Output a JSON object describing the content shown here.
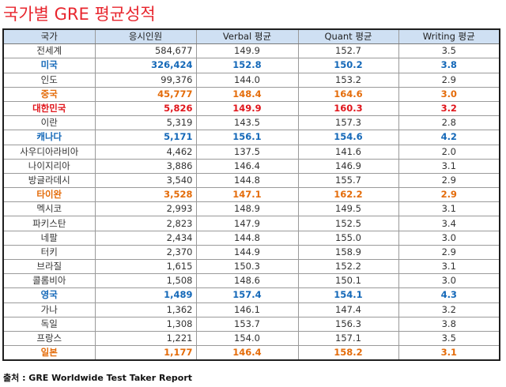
{
  "title": "국가별 GRE 평균성적",
  "headers": [
    "국가",
    "응시인원",
    "Verbal 평균",
    "Quant 평균",
    "Writing 평균"
  ],
  "rows": [
    {
      "country": "전세계",
      "takers": "584,677",
      "verbal": "149.9",
      "quant": "152.7",
      "writing": "3.5",
      "style": ""
    },
    {
      "country": "미국",
      "takers": "326,424",
      "verbal": "152.8",
      "quant": "150.2",
      "writing": "3.8",
      "style": "blue"
    },
    {
      "country": "인도",
      "takers": "99,376",
      "verbal": "144.0",
      "quant": "153.2",
      "writing": "2.9",
      "style": ""
    },
    {
      "country": "중국",
      "takers": "45,777",
      "verbal": "148.4",
      "quant": "164.6",
      "writing": "3.0",
      "style": "orange"
    },
    {
      "country": "대한민국",
      "takers": "5,826",
      "verbal": "149.9",
      "quant": "160.3",
      "writing": "3.2",
      "style": "red"
    },
    {
      "country": "이란",
      "takers": "5,319",
      "verbal": "143.5",
      "quant": "157.3",
      "writing": "2.8",
      "style": ""
    },
    {
      "country": "캐나다",
      "takers": "5,171",
      "verbal": "156.1",
      "quant": "154.6",
      "writing": "4.2",
      "style": "blue"
    },
    {
      "country": "사우디아라비아",
      "takers": "4,462",
      "verbal": "137.5",
      "quant": "141.6",
      "writing": "2.0",
      "style": ""
    },
    {
      "country": "나이지리아",
      "takers": "3,886",
      "verbal": "146.4",
      "quant": "146.9",
      "writing": "3.1",
      "style": ""
    },
    {
      "country": "방글라데시",
      "takers": "3,540",
      "verbal": "144.8",
      "quant": "155.7",
      "writing": "2.9",
      "style": ""
    },
    {
      "country": "타이완",
      "takers": "3,528",
      "verbal": "147.1",
      "quant": "162.2",
      "writing": "2.9",
      "style": "orange"
    },
    {
      "country": "멕시코",
      "takers": "2,993",
      "verbal": "148.9",
      "quant": "149.5",
      "writing": "3.1",
      "style": ""
    },
    {
      "country": "파키스탄",
      "takers": "2,823",
      "verbal": "147.9",
      "quant": "152.5",
      "writing": "3.4",
      "style": ""
    },
    {
      "country": "네팔",
      "takers": "2,434",
      "verbal": "144.8",
      "quant": "155.0",
      "writing": "3.0",
      "style": ""
    },
    {
      "country": "터키",
      "takers": "2,370",
      "verbal": "144.9",
      "quant": "158.9",
      "writing": "2.9",
      "style": ""
    },
    {
      "country": "브라질",
      "takers": "1,615",
      "verbal": "150.3",
      "quant": "152.2",
      "writing": "3.1",
      "style": ""
    },
    {
      "country": "콜롬비아",
      "takers": "1,508",
      "verbal": "148.6",
      "quant": "150.1",
      "writing": "3.0",
      "style": ""
    },
    {
      "country": "영국",
      "takers": "1,489",
      "verbal": "157.4",
      "quant": "154.1",
      "writing": "4.3",
      "style": "blue"
    },
    {
      "country": "가나",
      "takers": "1,362",
      "verbal": "146.1",
      "quant": "147.4",
      "writing": "3.2",
      "style": ""
    },
    {
      "country": "독일",
      "takers": "1,308",
      "verbal": "153.7",
      "quant": "156.3",
      "writing": "3.8",
      "style": ""
    },
    {
      "country": "프랑스",
      "takers": "1,221",
      "verbal": "154.0",
      "quant": "157.1",
      "writing": "3.5",
      "style": ""
    },
    {
      "country": "일본",
      "takers": "1,177",
      "verbal": "146.4",
      "quant": "158.2",
      "writing": "3.1",
      "style": "orange"
    }
  ],
  "source": "출처 : GRE Worldwide Test Taker Report",
  "colors": {
    "blue": "#1468b8",
    "orange": "#e46c0a",
    "red": "#e0161c",
    "header_bg": "#cfe0f3",
    "title": "#e8262e"
  }
}
